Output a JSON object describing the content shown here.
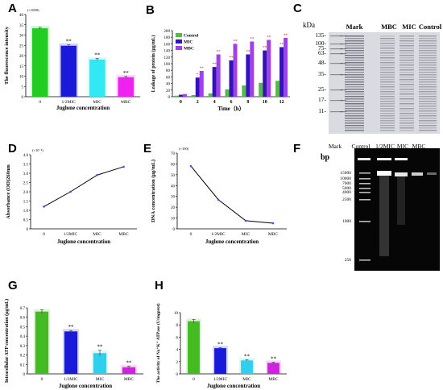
{
  "chart_data": [
    {
      "panel": "A",
      "type": "bar",
      "categories": [
        "0",
        "1/2MIC",
        "MIC",
        "MBC"
      ],
      "values": [
        33.3,
        24.8,
        18.1,
        9.5
      ],
      "errors": [
        0.4,
        0.5,
        0.6,
        0.4
      ],
      "sig": [
        "",
        "**",
        "**",
        "**"
      ],
      "colors": [
        "#22cc22",
        "#1a1adb",
        "#33e8f5",
        "#f020f0"
      ],
      "ylabel": "The fluorescence intensity",
      "xlabel": "Juglone concentration",
      "ymult": "(×1000)",
      "ylim": [
        0,
        40
      ],
      "yticks": [
        0,
        5,
        10,
        15,
        20,
        25,
        30,
        35,
        40
      ]
    },
    {
      "panel": "B",
      "type": "bar",
      "categories": [
        "0",
        "2",
        "4",
        "6",
        "8",
        "10",
        "12"
      ],
      "series": [
        {
          "name": "Control",
          "color": "#55bb44",
          "values": [
            3,
            5,
            10,
            22,
            34,
            42,
            48
          ]
        },
        {
          "name": "MIC",
          "color": "#3311bb",
          "values": [
            6,
            58,
            90,
            110,
            128,
            140,
            150
          ]
        },
        {
          "name": "MBC",
          "color": "#a040e8",
          "values": [
            8,
            78,
            128,
            160,
            167,
            172,
            178
          ]
        }
      ],
      "sig_mic": [
        "",
        "*",
        "**",
        "**",
        "**",
        "**",
        "**"
      ],
      "sig_mbc": [
        "",
        "**",
        "**",
        "**",
        "**",
        "**",
        "**"
      ],
      "ylabel": "Leakage of protein (μg/mL)",
      "xlabel": "Time（h）",
      "ylim": [
        0,
        200
      ],
      "yticks": [
        0,
        20,
        40,
        60,
        80,
        100,
        120,
        140,
        160,
        180,
        200
      ]
    },
    {
      "panel": "D",
      "type": "line",
      "categories": [
        "0",
        "1/2MIC",
        "MIC",
        "MBC"
      ],
      "values": [
        1.2,
        2.0,
        2.9,
        3.35
      ],
      "ylabel": "Absorbance (OD)260nm",
      "xlabel": "Juglone concentration",
      "ymult": "(×10⁻²)",
      "ylim": [
        0,
        4.0
      ],
      "yticks": [
        "0",
        "0.5",
        "1.0",
        "1.5",
        "2.0",
        "2.5",
        "3.0",
        "3.5",
        "4.0"
      ]
    },
    {
      "panel": "E",
      "type": "line",
      "categories": [
        "0",
        "1/2MIC",
        "MIC",
        "MBC"
      ],
      "values": [
        58,
        27,
        7.5,
        5.2
      ],
      "ylabel": "DNA concentration (μg/mL)",
      "xlabel": "Juglone concentration",
      "ymult": "(×100)",
      "ylim": [
        0,
        70
      ],
      "yticks": [
        "0",
        "10",
        "20",
        "30",
        "40",
        "50",
        "60",
        "70"
      ]
    },
    {
      "panel": "G",
      "type": "bar",
      "categories": [
        "0",
        "1/2MIC",
        "MIC",
        "MBC"
      ],
      "values": [
        0.66,
        0.45,
        0.22,
        0.07
      ],
      "errors": [
        0.02,
        0.01,
        0.03,
        0.01
      ],
      "sig": [
        "",
        "**",
        "**",
        "**"
      ],
      "colors": [
        "#44bb22",
        "#1a1adb",
        "#2ed0ee",
        "#d020e0"
      ],
      "ylabel": "Intracellular ATP concentration (μg/mL)",
      "xlabel": "Juglone concentration",
      "ylim": [
        0,
        0.7
      ],
      "yticks": [
        "0",
        "0.1",
        "0.2",
        "0.3",
        "0.4",
        "0.5",
        "0.6",
        "0.7"
      ]
    },
    {
      "panel": "H",
      "type": "bar",
      "categories": [
        "0",
        "1/2MIC",
        "MIC",
        "MBC"
      ],
      "values": [
        8.6,
        4.2,
        2.2,
        1.8
      ],
      "errors": [
        0.3,
        0.1,
        0.1,
        0.1
      ],
      "sig": [
        "",
        "**",
        "**",
        "**"
      ],
      "colors": [
        "#44bb22",
        "#1a1adb",
        "#2ed0ee",
        "#d020e0"
      ],
      "ylabel": "The activity of Na⁺K⁺ ATPase (U/mgprot)",
      "xlabel": "Juglone concentration",
      "ylim": [
        0,
        10
      ],
      "yticks": [
        "0",
        "2",
        "4",
        "6",
        "8",
        "10"
      ]
    }
  ],
  "panel_labels": {
    "A": "A",
    "B": "B",
    "C": "C",
    "D": "D",
    "E": "E",
    "F": "F",
    "G": "G",
    "H": "H"
  },
  "gel_c": {
    "unit": "kDa",
    "lanes": [
      "Mark",
      "MBC",
      "MIC",
      "Control"
    ],
    "markers": [
      "135-",
      "100-",
      "75-",
      "63-",
      "48-",
      "35-",
      "25-",
      "17-",
      "11-"
    ]
  },
  "gel_f": {
    "unit": "bp",
    "lanes": [
      "Mark",
      "Control",
      "1/2MIC",
      "MIC",
      "MBC"
    ],
    "markers": [
      "15000",
      "10000",
      "7000",
      "5000",
      "4000",
      "2500",
      "1000",
      "250"
    ]
  }
}
